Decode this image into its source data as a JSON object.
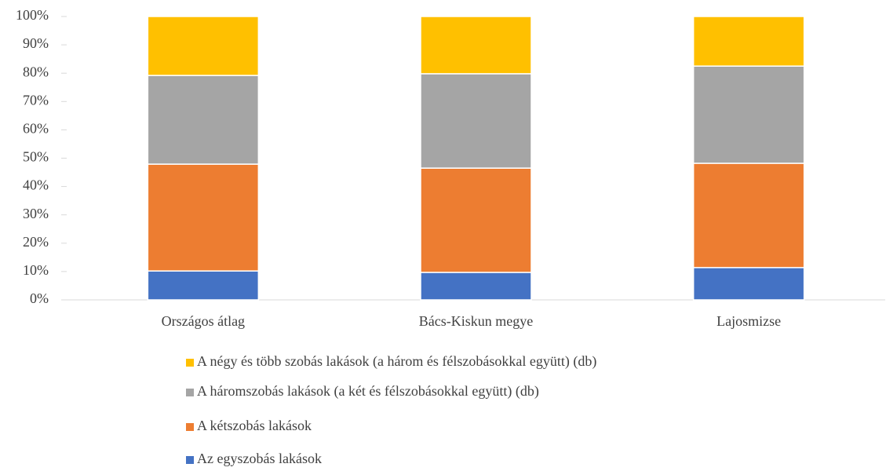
{
  "chart_data": {
    "type": "stacked_bar",
    "categories": [
      "Országos átlag",
      "Bács-Kiskun megye",
      "Lajosmizse"
    ],
    "series": [
      {
        "name": "Az egyszobás lakások",
        "color": "#4472c4",
        "values": [
          10.2,
          9.7,
          11.4
        ]
      },
      {
        "name": "A kétszobás lakások",
        "color": "#ed7d31",
        "values": [
          37.7,
          36.8,
          36.8
        ]
      },
      {
        "name": "A háromszobás lakások (a két és félszobásokkal együtt) (db)",
        "color": "#a5a5a5",
        "values": [
          31.3,
          33.3,
          34.3
        ]
      },
      {
        "name": "A négy és több szobás lakások (a három és félszobásokkal együtt) (db)",
        "color": "#ffc000",
        "values": [
          20.8,
          20.2,
          17.5
        ]
      }
    ],
    "ylim": [
      0,
      100
    ],
    "yticks": [
      {
        "value": 0,
        "label": "0%"
      },
      {
        "value": 10,
        "label": "10%"
      },
      {
        "value": 20,
        "label": "20%"
      },
      {
        "value": 30,
        "label": "30%"
      },
      {
        "value": 40,
        "label": "40%"
      },
      {
        "value": 50,
        "label": "50%"
      },
      {
        "value": 60,
        "label": "60%"
      },
      {
        "value": 70,
        "label": "70%"
      },
      {
        "value": 80,
        "label": "80%"
      },
      {
        "value": 90,
        "label": "90%"
      },
      {
        "value": 100,
        "label": "100%"
      }
    ],
    "grid": false,
    "legend": "bottom"
  }
}
